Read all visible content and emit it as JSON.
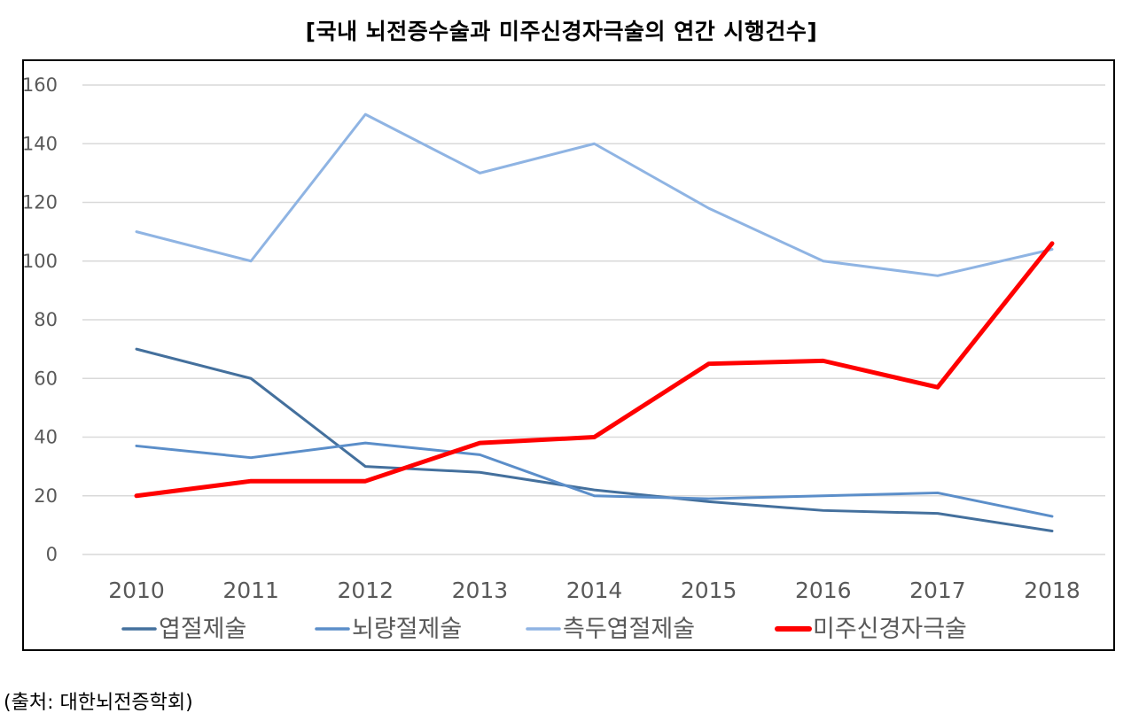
{
  "chart_data": {
    "type": "line",
    "title": "[국내 뇌전증수술과 미주신경자극술의 연간 시행건수]",
    "xlabel": "",
    "ylabel": "",
    "ylim": [
      0,
      160
    ],
    "yticks": [
      0,
      20,
      40,
      60,
      80,
      100,
      120,
      140,
      160
    ],
    "grid": true,
    "legend_position": "bottom",
    "x": [
      "2010",
      "2011",
      "2012",
      "2013",
      "2014",
      "2015",
      "2016",
      "2017",
      "2018"
    ],
    "series": [
      {
        "name": "엽절제술",
        "color": "#44709d",
        "values": [
          70,
          60,
          30,
          28,
          22,
          18,
          15,
          14,
          8
        ]
      },
      {
        "name": "뇌량절제술",
        "color": "#5b8ec9",
        "values": [
          37,
          33,
          38,
          34,
          20,
          19,
          20,
          21,
          13
        ]
      },
      {
        "name": "측두엽절제술",
        "color": "#8fb4e3",
        "values": [
          110,
          100,
          150,
          130,
          140,
          118,
          100,
          95,
          104
        ]
      },
      {
        "name": "미주신경자극술",
        "color": "#ff0000",
        "values": [
          20,
          25,
          25,
          38,
          40,
          65,
          66,
          57,
          106
        ]
      }
    ]
  },
  "footer": {
    "source": "(출처:  대한뇌전증학회)"
  }
}
